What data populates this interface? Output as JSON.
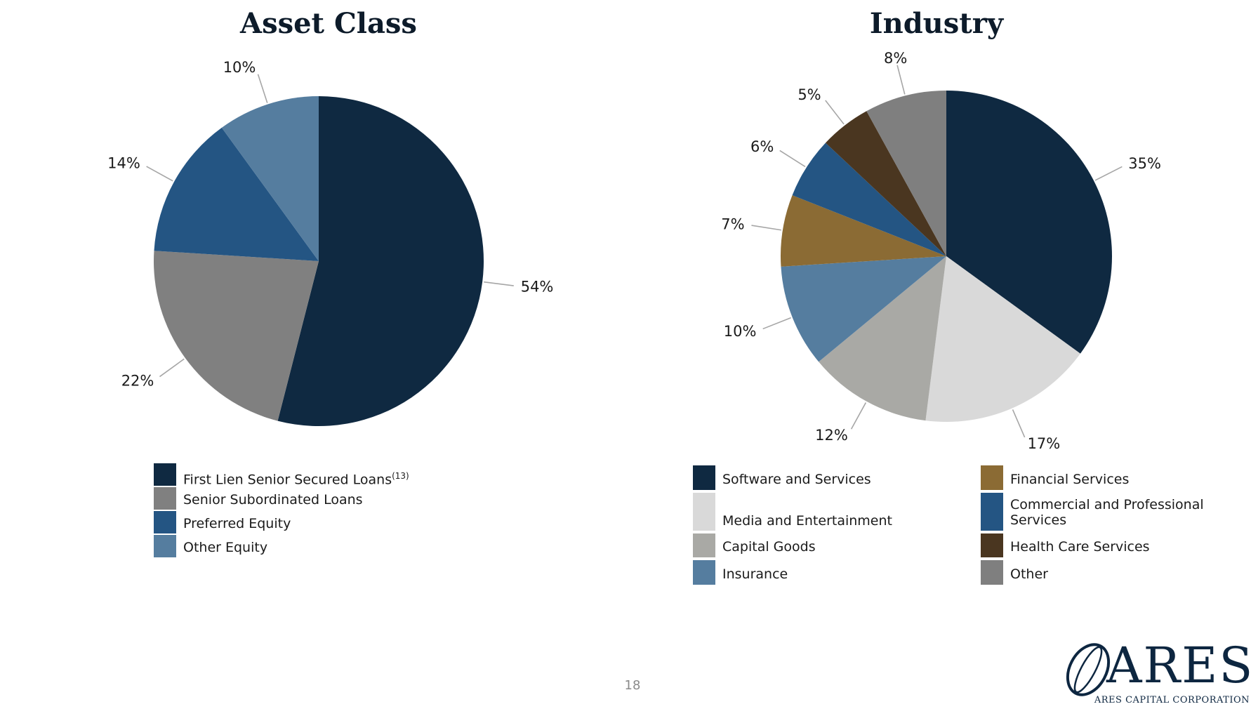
{
  "page_number": "18",
  "logo": {
    "wordmark": "ARES",
    "subtitle": "ARES CAPITAL CORPORATION"
  },
  "chart_data": [
    {
      "type": "pie",
      "title": "Asset Class",
      "legend_placement": "bottom",
      "series": [
        {
          "name": "First Lien Senior Secured Loans",
          "footnote": "(13)",
          "value": 54,
          "label": "54%",
          "color": "#0f2941"
        },
        {
          "name": "Senior Subordinated Loans",
          "value": 22,
          "label": "22%",
          "color": "#808080"
        },
        {
          "name": "Preferred Equity",
          "value": 14,
          "label": "14%",
          "color": "#245583"
        },
        {
          "name": "Other Equity",
          "value": 10,
          "label": "10%",
          "color": "#557d9f"
        }
      ]
    },
    {
      "type": "pie",
      "title": "Industry",
      "legend_placement": "bottom",
      "series": [
        {
          "name": "Software and Services",
          "value": 35,
          "label": "35%",
          "color": "#0f2941"
        },
        {
          "name": "Media and Entertainment",
          "value": 17,
          "label": "17%",
          "color": "#d9d9d9"
        },
        {
          "name": "Capital Goods",
          "value": 12,
          "label": "12%",
          "color": "#a9a9a5"
        },
        {
          "name": "Insurance",
          "value": 10,
          "label": "10%",
          "color": "#557d9f"
        },
        {
          "name": "Financial Services",
          "value": 7,
          "label": "7%",
          "color": "#8b6b34"
        },
        {
          "name": "Commercial and Professional Services",
          "value": 6,
          "label": "6%",
          "color": "#245583"
        },
        {
          "name": "Health Care Services",
          "value": 5,
          "label": "5%",
          "color": "#4a3620"
        },
        {
          "name": "Other",
          "value": 8,
          "label": "8%",
          "color": "#7f7f7f"
        }
      ]
    }
  ]
}
